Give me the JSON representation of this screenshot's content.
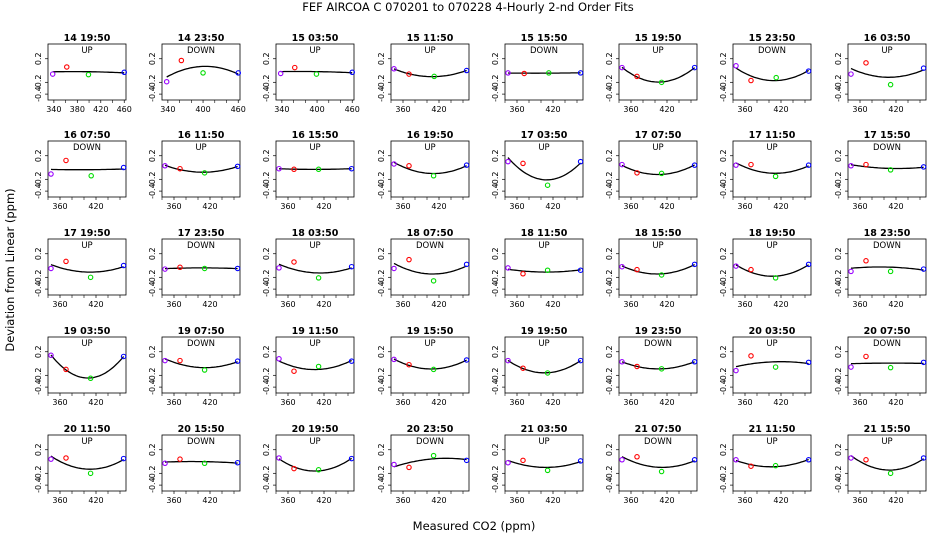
{
  "chart_data": {
    "type": "scatter",
    "title": "FEF   AIRCOA C   070201 to 070228  4-Hourly 2-nd Order Fits",
    "xlabel": "Measured CO2 (ppm)",
    "ylabel": "Deviation from Linear (ppm)",
    "yticks": [
      "0.2",
      "-0.2",
      "-0.4"
    ],
    "ylim": [
      -0.5,
      0.45
    ],
    "grid": false,
    "colors": {
      "c1": "#9900ff",
      "c2": "#ff0000",
      "c3": "#00dd00",
      "c4": "#0000ff",
      "fit": "#000000"
    },
    "panels": [
      {
        "label": "14 19:50",
        "dir": "UP",
        "xlim": [
          330,
          463
        ],
        "xticks": [
          "340",
          "380",
          "420",
          "460"
        ],
        "x": [
          338,
          362,
          399,
          460
        ],
        "y": [
          -0.06,
          0.06,
          -0.07,
          -0.03
        ]
      },
      {
        "label": "14 23:50",
        "dir": "DOWN",
        "xlim": [
          330,
          463
        ],
        "xticks": [
          "340",
          "400",
          "460"
        ],
        "x": [
          338,
          363,
          400,
          460
        ],
        "y": [
          -0.19,
          0.17,
          -0.04,
          -0.04
        ]
      },
      {
        "label": "15 03:50",
        "dir": "UP",
        "xlim": [
          330,
          463
        ],
        "xticks": [
          "340",
          "400",
          "460"
        ],
        "x": [
          338,
          362,
          399,
          460
        ],
        "y": [
          -0.05,
          0.05,
          -0.06,
          -0.03
        ]
      },
      {
        "label": "15 11:50",
        "dir": "UP",
        "xlim": [
          340,
          470
        ],
        "xticks": [
          "360",
          "420"
        ],
        "x": [
          345,
          370,
          412,
          466
        ],
        "y": [
          0.03,
          -0.06,
          -0.1,
          0.0
        ]
      },
      {
        "label": "15 15:50",
        "dir": "DOWN",
        "xlim": [
          340,
          470
        ],
        "xticks": [
          "360",
          "420"
        ],
        "x": [
          345,
          372,
          413,
          466
        ],
        "y": [
          -0.04,
          -0.05,
          -0.04,
          -0.04
        ]
      },
      {
        "label": "15 19:50",
        "dir": "UP",
        "xlim": [
          340,
          470
        ],
        "xticks": [
          "360",
          "420"
        ],
        "x": [
          345,
          370,
          411,
          466
        ],
        "y": [
          0.05,
          -0.1,
          -0.2,
          0.05
        ]
      },
      {
        "label": "15 23:50",
        "dir": "DOWN",
        "xlim": [
          340,
          470
        ],
        "xticks": [
          "360",
          "420"
        ],
        "x": [
          345,
          370,
          412,
          466
        ],
        "y": [
          0.08,
          -0.17,
          -0.12,
          -0.01
        ]
      },
      {
        "label": "16 03:50",
        "dir": "UP",
        "xlim": [
          340,
          470
        ],
        "xticks": [
          "360",
          "420"
        ],
        "x": [
          345,
          370,
          411,
          466
        ],
        "y": [
          -0.06,
          0.13,
          -0.24,
          0.04
        ]
      },
      {
        "label": "16 07:50",
        "dir": "DOWN",
        "xlim": [
          340,
          470
        ],
        "xticks": [
          "360",
          "420"
        ],
        "x": [
          345,
          370,
          412,
          466
        ],
        "y": [
          -0.11,
          0.12,
          -0.14,
          0.0
        ]
      },
      {
        "label": "16 11:50",
        "dir": "UP",
        "xlim": [
          340,
          470
        ],
        "xticks": [
          "360",
          "420"
        ],
        "x": [
          345,
          370,
          411,
          466
        ],
        "y": [
          0.03,
          -0.02,
          -0.09,
          0.02
        ]
      },
      {
        "label": "16 15:50",
        "dir": "UP",
        "xlim": [
          340,
          470
        ],
        "xticks": [
          "360",
          "420"
        ],
        "x": [
          345,
          370,
          411,
          466
        ],
        "y": [
          -0.02,
          -0.03,
          -0.03,
          -0.02
        ]
      },
      {
        "label": "16 19:50",
        "dir": "UP",
        "xlim": [
          340,
          470
        ],
        "xticks": [
          "360",
          "420"
        ],
        "x": [
          345,
          370,
          411,
          466
        ],
        "y": [
          0.06,
          0.03,
          -0.14,
          0.04
        ]
      },
      {
        "label": "17 03:50",
        "dir": "UP",
        "xlim": [
          340,
          470
        ],
        "xticks": [
          "360",
          "420"
        ],
        "x": [
          345,
          370,
          411,
          466
        ],
        "y": [
          0.1,
          0.07,
          -0.3,
          0.1
        ]
      },
      {
        "label": "17 07:50",
        "dir": "UP",
        "xlim": [
          340,
          470
        ],
        "xticks": [
          "360",
          "420"
        ],
        "x": [
          345,
          370,
          411,
          466
        ],
        "y": [
          0.05,
          -0.09,
          -0.1,
          0.04
        ]
      },
      {
        "label": "17 11:50",
        "dir": "UP",
        "xlim": [
          340,
          470
        ],
        "xticks": [
          "360",
          "420"
        ],
        "x": [
          345,
          370,
          411,
          466
        ],
        "y": [
          0.04,
          0.05,
          -0.15,
          0.04
        ]
      },
      {
        "label": "17 15:50",
        "dir": "DOWN",
        "xlim": [
          340,
          470
        ],
        "xticks": [
          "360",
          "420"
        ],
        "x": [
          345,
          370,
          411,
          466
        ],
        "y": [
          0.03,
          0.05,
          -0.04,
          0.01
        ]
      },
      {
        "label": "17 19:50",
        "dir": "UP",
        "xlim": [
          340,
          470
        ],
        "xticks": [
          "360",
          "420"
        ],
        "x": [
          345,
          370,
          411,
          466
        ],
        "y": [
          -0.05,
          0.07,
          -0.2,
          0.0
        ]
      },
      {
        "label": "17 23:50",
        "dir": "DOWN",
        "xlim": [
          340,
          470
        ],
        "xticks": [
          "360",
          "420"
        ],
        "x": [
          345,
          370,
          411,
          466
        ],
        "y": [
          -0.06,
          -0.03,
          -0.05,
          -0.05
        ]
      },
      {
        "label": "18 03:50",
        "dir": "UP",
        "xlim": [
          340,
          470
        ],
        "xticks": [
          "360",
          "420"
        ],
        "x": [
          345,
          370,
          411,
          466
        ],
        "y": [
          -0.04,
          0.06,
          -0.21,
          -0.02
        ]
      },
      {
        "label": "18 07:50",
        "dir": "DOWN",
        "xlim": [
          340,
          470
        ],
        "xticks": [
          "360",
          "420"
        ],
        "x": [
          345,
          370,
          411,
          466
        ],
        "y": [
          -0.05,
          0.1,
          -0.26,
          0.02
        ]
      },
      {
        "label": "18 11:50",
        "dir": "UP",
        "xlim": [
          340,
          470
        ],
        "xticks": [
          "360",
          "420"
        ],
        "x": [
          345,
          370,
          411,
          466
        ],
        "y": [
          -0.04,
          -0.14,
          -0.08,
          -0.08
        ]
      },
      {
        "label": "18 15:50",
        "dir": "UP",
        "xlim": [
          340,
          470
        ],
        "xticks": [
          "360",
          "420"
        ],
        "x": [
          345,
          370,
          411,
          466
        ],
        "y": [
          -0.02,
          -0.07,
          -0.16,
          0.02
        ]
      },
      {
        "label": "18 19:50",
        "dir": "UP",
        "xlim": [
          340,
          470
        ],
        "xticks": [
          "360",
          "420"
        ],
        "x": [
          345,
          370,
          411,
          466
        ],
        "y": [
          -0.01,
          -0.07,
          -0.21,
          0.02
        ]
      },
      {
        "label": "18 23:50",
        "dir": "DOWN",
        "xlim": [
          340,
          470
        ],
        "xticks": [
          "360",
          "420"
        ],
        "x": [
          345,
          370,
          411,
          466
        ],
        "y": [
          -0.1,
          0.08,
          -0.1,
          -0.06
        ]
      },
      {
        "label": "19 03:50",
        "dir": "UP",
        "xlim": [
          340,
          470
        ],
        "xticks": [
          "360",
          "420"
        ],
        "x": [
          345,
          370,
          411,
          466
        ],
        "y": [
          0.14,
          -0.1,
          -0.25,
          0.12
        ]
      },
      {
        "label": "19 07:50",
        "dir": "DOWN",
        "xlim": [
          340,
          470
        ],
        "xticks": [
          "360",
          "420"
        ],
        "x": [
          345,
          370,
          411,
          466
        ],
        "y": [
          0.05,
          0.05,
          -0.11,
          0.04
        ]
      },
      {
        "label": "19 11:50",
        "dir": "UP",
        "xlim": [
          340,
          470
        ],
        "xticks": [
          "360",
          "420"
        ],
        "x": [
          345,
          370,
          411,
          466
        ],
        "y": [
          0.08,
          -0.13,
          -0.05,
          0.04
        ]
      },
      {
        "label": "19 15:50",
        "dir": "UP",
        "xlim": [
          340,
          470
        ],
        "xticks": [
          "360",
          "420"
        ],
        "x": [
          345,
          370,
          411,
          466
        ],
        "y": [
          0.07,
          -0.02,
          -0.1,
          0.06
        ]
      },
      {
        "label": "19 19:50",
        "dir": "UP",
        "xlim": [
          340,
          470
        ],
        "xticks": [
          "360",
          "420"
        ],
        "x": [
          345,
          370,
          411,
          466
        ],
        "y": [
          0.05,
          -0.08,
          -0.16,
          0.05
        ]
      },
      {
        "label": "19 23:50",
        "dir": "DOWN",
        "xlim": [
          340,
          470
        ],
        "xticks": [
          "360",
          "420"
        ],
        "x": [
          345,
          370,
          411,
          466
        ],
        "y": [
          0.03,
          -0.05,
          -0.09,
          0.03
        ]
      },
      {
        "label": "20 03:50",
        "dir": "UP",
        "xlim": [
          340,
          470
        ],
        "xticks": [
          "360",
          "420"
        ],
        "x": [
          345,
          370,
          411,
          466
        ],
        "y": [
          -0.12,
          0.13,
          -0.06,
          0.02
        ]
      },
      {
        "label": "20 07:50",
        "dir": "DOWN",
        "xlim": [
          340,
          470
        ],
        "xticks": [
          "360",
          "420"
        ],
        "x": [
          345,
          370,
          411,
          466
        ],
        "y": [
          -0.06,
          0.12,
          -0.07,
          0.02
        ]
      },
      {
        "label": "20 11:50",
        "dir": "UP",
        "xlim": [
          340,
          470
        ],
        "xticks": [
          "360",
          "420"
        ],
        "x": [
          345,
          370,
          411,
          466
        ],
        "y": [
          0.04,
          0.06,
          -0.2,
          0.05
        ]
      },
      {
        "label": "20 15:50",
        "dir": "DOWN",
        "xlim": [
          340,
          470
        ],
        "xticks": [
          "360",
          "420"
        ],
        "x": [
          345,
          370,
          411,
          466
        ],
        "y": [
          -0.03,
          0.04,
          -0.03,
          -0.02
        ]
      },
      {
        "label": "20 19:50",
        "dir": "UP",
        "xlim": [
          340,
          470
        ],
        "xticks": [
          "360",
          "420"
        ],
        "x": [
          345,
          370,
          411,
          466
        ],
        "y": [
          0.06,
          -0.12,
          -0.14,
          0.05
        ]
      },
      {
        "label": "20 23:50",
        "dir": "DOWN",
        "xlim": [
          340,
          470
        ],
        "xticks": [
          "360",
          "420"
        ],
        "x": [
          345,
          370,
          411,
          466
        ],
        "y": [
          -0.05,
          -0.1,
          0.1,
          0.02
        ]
      },
      {
        "label": "21 03:50",
        "dir": "UP",
        "xlim": [
          340,
          470
        ],
        "xticks": [
          "360",
          "420"
        ],
        "x": [
          345,
          370,
          411,
          466
        ],
        "y": [
          -0.02,
          0.02,
          -0.15,
          0.01
        ]
      },
      {
        "label": "21 07:50",
        "dir": "DOWN",
        "xlim": [
          340,
          470
        ],
        "xticks": [
          "360",
          "420"
        ],
        "x": [
          345,
          370,
          411,
          466
        ],
        "y": [
          0.03,
          0.08,
          -0.17,
          0.03
        ]
      },
      {
        "label": "21 11:50",
        "dir": "UP",
        "xlim": [
          340,
          470
        ],
        "xticks": [
          "360",
          "420"
        ],
        "x": [
          345,
          370,
          411,
          466
        ],
        "y": [
          0.03,
          -0.08,
          -0.07,
          0.03
        ]
      },
      {
        "label": "21 15:50",
        "dir": "UP",
        "xlim": [
          340,
          470
        ],
        "xticks": [
          "360",
          "420"
        ],
        "x": [
          345,
          370,
          411,
          466
        ],
        "y": [
          0.06,
          0.03,
          -0.2,
          0.06
        ]
      }
    ]
  }
}
